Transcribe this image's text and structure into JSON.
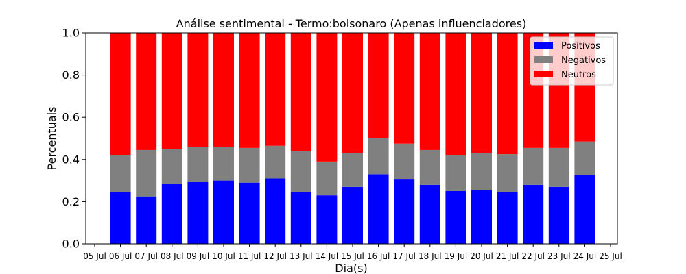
{
  "chart_data": {
    "type": "bar",
    "stacked": true,
    "title": "Análise sentimental - Termo:bolsonaro (Apenas influenciadores)",
    "xlabel": "Dia(s)",
    "ylabel": "Percentuais",
    "ylim": [
      0.0,
      1.0
    ],
    "yticks": [
      "0.0",
      "0.2",
      "0.4",
      "0.6",
      "0.8",
      "1.0"
    ],
    "xticks": [
      "05 Jul",
      "06 Jul",
      "07 Jul",
      "08 Jul",
      "09 Jul",
      "10 Jul",
      "11 Jul",
      "12 Jul",
      "13 Jul",
      "14 Jul",
      "15 Jul",
      "16 Jul",
      "17 Jul",
      "18 Jul",
      "19 Jul",
      "20 Jul",
      "21 Jul",
      "22 Jul",
      "23 Jul",
      "24 Jul",
      "25 Jul"
    ],
    "categories": [
      "06 Jul",
      "07 Jul",
      "08 Jul",
      "09 Jul",
      "10 Jul",
      "11 Jul",
      "12 Jul",
      "13 Jul",
      "14 Jul",
      "15 Jul",
      "16 Jul",
      "17 Jul",
      "18 Jul",
      "19 Jul",
      "20 Jul",
      "21 Jul",
      "22 Jul",
      "23 Jul",
      "24 Jul"
    ],
    "series": [
      {
        "name": "Positivos",
        "color": "#0000ff",
        "values": [
          0.245,
          0.225,
          0.285,
          0.295,
          0.3,
          0.29,
          0.31,
          0.245,
          0.23,
          0.27,
          0.33,
          0.305,
          0.28,
          0.25,
          0.255,
          0.245,
          0.28,
          0.27,
          0.325
        ]
      },
      {
        "name": "Negativos",
        "color": "#808080",
        "values": [
          0.175,
          0.22,
          0.165,
          0.165,
          0.16,
          0.165,
          0.155,
          0.195,
          0.16,
          0.16,
          0.17,
          0.17,
          0.165,
          0.17,
          0.175,
          0.18,
          0.175,
          0.185,
          0.16
        ]
      },
      {
        "name": "Neutros",
        "color": "#ff0000",
        "values": [
          0.58,
          0.555,
          0.55,
          0.54,
          0.54,
          0.545,
          0.535,
          0.56,
          0.61,
          0.57,
          0.5,
          0.525,
          0.555,
          0.58,
          0.57,
          0.575,
          0.545,
          0.545,
          0.515
        ]
      }
    ],
    "legend_position": "top-right",
    "grid": false
  }
}
